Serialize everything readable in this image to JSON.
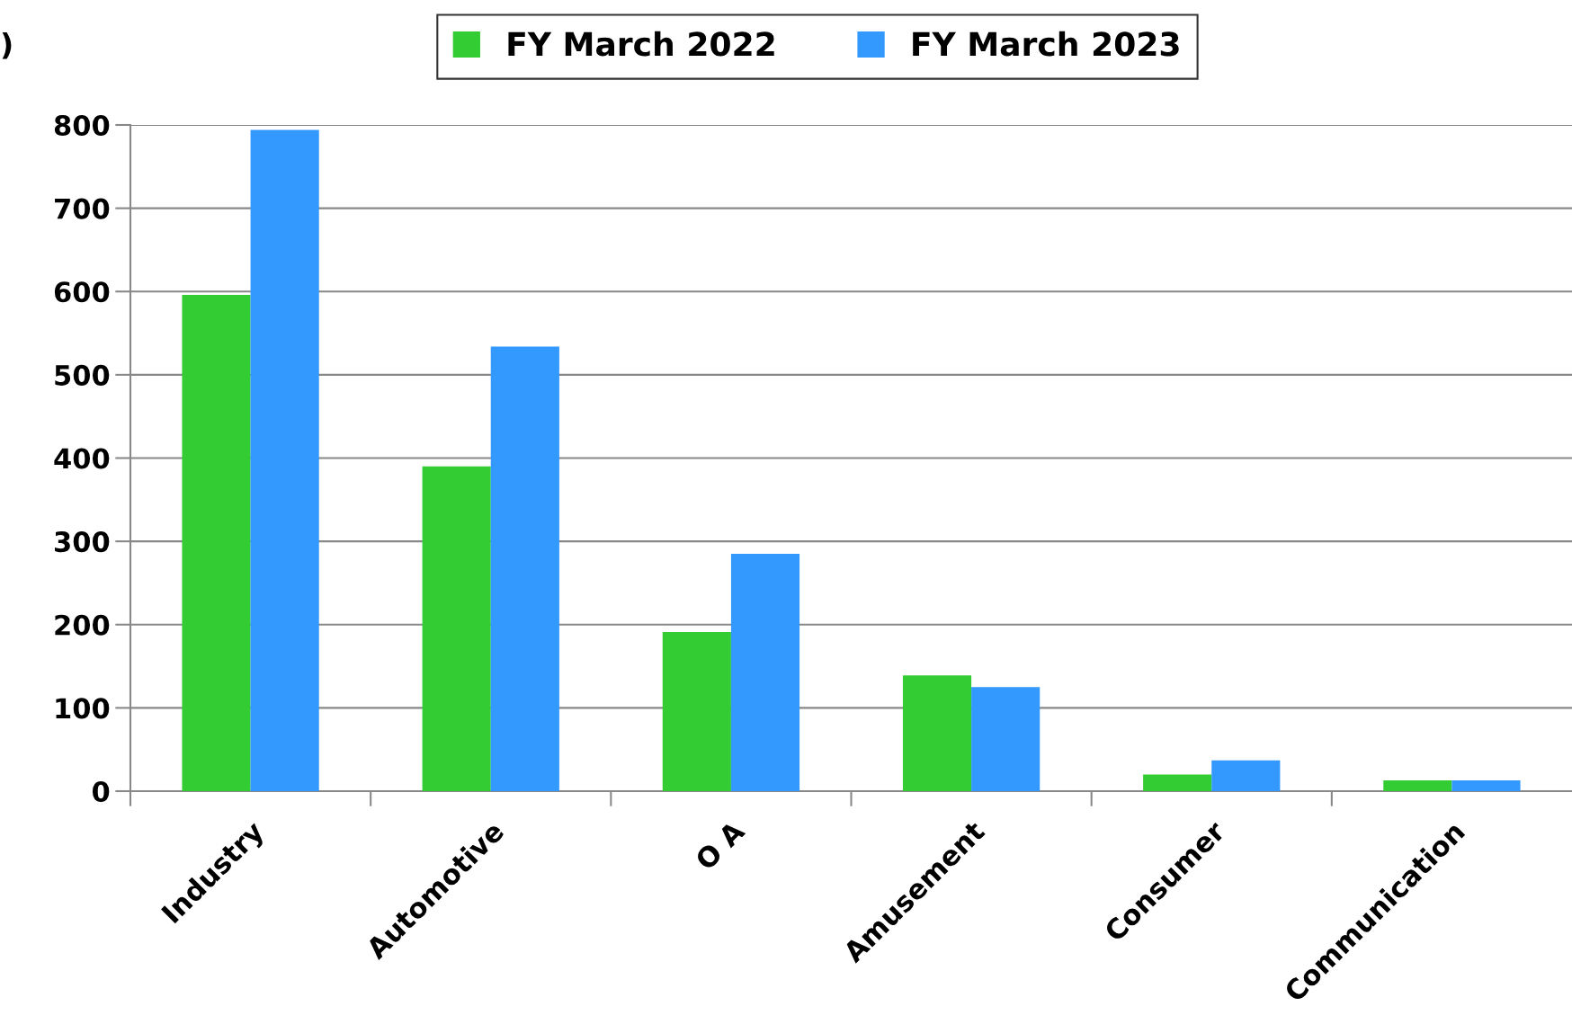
{
  "chart_data": {
    "type": "bar",
    "ylabel": ")",
    "categories": [
      "Industry",
      "Automotive",
      "O A",
      "Amusement",
      "Consumer",
      "Communication"
    ],
    "series": [
      {
        "name": "FY March 2022",
        "color": "#33cc33",
        "values": [
          596,
          390,
          191,
          139,
          20,
          13
        ]
      },
      {
        "name": "FY March 2023",
        "color": "#3399ff",
        "values": [
          794,
          534,
          285,
          125,
          37,
          13
        ]
      }
    ],
    "ylim": [
      0,
      800
    ],
    "yticks": [
      0,
      100,
      200,
      300,
      400,
      500,
      600,
      700,
      800
    ],
    "grid": "y",
    "legend": "top"
  }
}
